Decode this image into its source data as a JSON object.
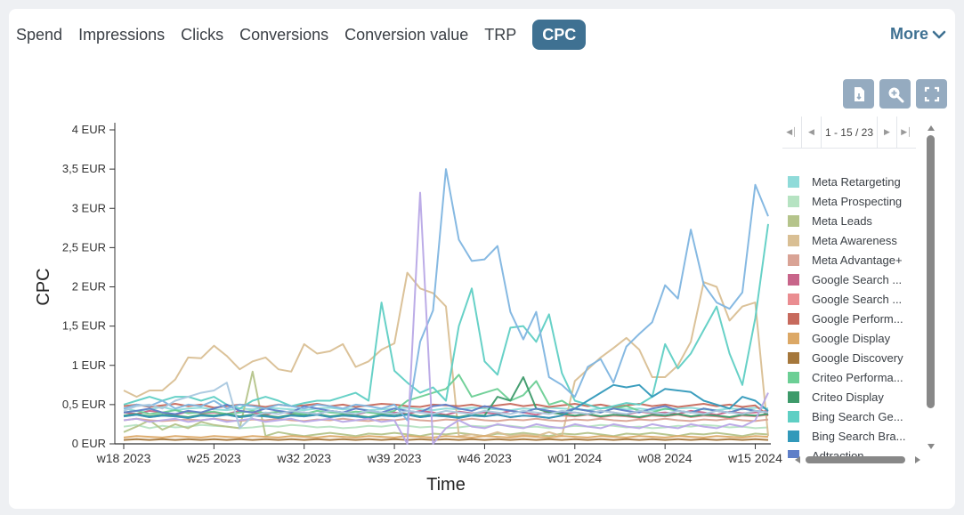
{
  "tabs": [
    {
      "label": "Spend",
      "active": false
    },
    {
      "label": "Impressions",
      "active": false
    },
    {
      "label": "Clicks",
      "active": false
    },
    {
      "label": "Conversions",
      "active": false
    },
    {
      "label": "Conversion value",
      "active": false
    },
    {
      "label": "TRP",
      "active": false
    },
    {
      "label": "CPC",
      "active": true
    }
  ],
  "more_label": "More",
  "toolbar": {
    "icons": [
      "export-icon",
      "zoom-icon",
      "fullscreen-icon"
    ]
  },
  "legend": {
    "pager": "1 - 15 / 23",
    "items": [
      {
        "label": "Meta Retargeting",
        "color": "#8fdbd9"
      },
      {
        "label": "Meta Prospecting",
        "color": "#b6e3c2"
      },
      {
        "label": "Meta Leads",
        "color": "#b5c48b"
      },
      {
        "label": "Meta Awareness",
        "color": "#d9bf94"
      },
      {
        "label": "Meta Advantage+",
        "color": "#d9a395"
      },
      {
        "label": "Google Search ...",
        "color": "#c8658a"
      },
      {
        "label": "Google Search ...",
        "color": "#ea8d91"
      },
      {
        "label": "Google Perform...",
        "color": "#c76a5d"
      },
      {
        "label": "Google Display",
        "color": "#dca866"
      },
      {
        "label": "Google Discovery",
        "color": "#a5773b"
      },
      {
        "label": "Criteo Performa...",
        "color": "#6ccf95"
      },
      {
        "label": "Criteo Display",
        "color": "#3d9a6a"
      },
      {
        "label": "Bing Search Ge...",
        "color": "#5fcfc4"
      },
      {
        "label": "Bing Search Bra...",
        "color": "#3299ba"
      },
      {
        "label": "Adtraction",
        "color": "#5f7fc8"
      }
    ]
  },
  "chart_data": {
    "type": "line",
    "xlabel": "Time",
    "ylabel": "CPC",
    "ylim": [
      0,
      4
    ],
    "y_ticks": [
      "0 EUR",
      "0,5 EUR",
      "1 EUR",
      "1,5 EUR",
      "2 EUR",
      "2,5 EUR",
      "3 EUR",
      "3,5 EUR",
      "4 EUR"
    ],
    "x_tick_labels": [
      "w18 2023",
      "w25 2023",
      "w32 2023",
      "w39 2023",
      "w46 2023",
      "w01 2024",
      "w08 2024",
      "w15 2024"
    ],
    "x": [
      "w18 2023",
      "w19 2023",
      "w20 2023",
      "w21 2023",
      "w22 2023",
      "w23 2023",
      "w24 2023",
      "w25 2023",
      "w26 2023",
      "w27 2023",
      "w28 2023",
      "w29 2023",
      "w30 2023",
      "w31 2023",
      "w32 2023",
      "w33 2023",
      "w34 2023",
      "w35 2023",
      "w36 2023",
      "w37 2023",
      "w38 2023",
      "w39 2023",
      "w40 2023",
      "w41 2023",
      "w42 2023",
      "w43 2023",
      "w44 2023",
      "w45 2023",
      "w46 2023",
      "w47 2023",
      "w48 2023",
      "w49 2023",
      "w50 2023",
      "w51 2023",
      "w52 2023",
      "w01 2024",
      "w02 2024",
      "w03 2024",
      "w04 2024",
      "w05 2024",
      "w06 2024",
      "w07 2024",
      "w08 2024",
      "w09 2024",
      "w10 2024",
      "w11 2024",
      "w12 2024",
      "w13 2024",
      "w14 2024",
      "w15 2024",
      "w16 2024"
    ],
    "series": [
      {
        "name": "Meta Retargeting",
        "color": "#8fdbd9",
        "values": [
          0.45,
          0.42,
          0.44,
          0.47,
          0.43,
          0.45,
          0.46,
          0.44,
          0.43,
          0.45,
          0.44,
          0.46,
          0.45,
          0.44,
          0.43,
          0.45,
          0.46,
          0.44,
          0.45,
          0.43,
          0.44,
          0.45,
          0.46,
          0.44,
          0.43,
          0.45,
          0.44,
          0.46,
          0.45,
          0.44,
          0.43,
          0.45,
          0.44,
          0.46,
          0.45,
          0.44,
          0.43,
          0.45,
          0.46,
          0.44,
          0.45,
          0.43,
          0.44,
          0.45,
          0.46,
          0.44,
          0.43,
          0.45,
          0.44,
          0.46,
          0.45
        ]
      },
      {
        "name": "Meta Prospecting",
        "color": "#b6e3c2",
        "values": [
          0.22,
          0.24,
          0.2,
          0.23,
          0.21,
          0.22,
          0.24,
          0.23,
          0.22,
          0.2,
          0.21,
          0.23,
          0.22,
          0.24,
          0.23,
          0.21,
          0.22,
          0.2,
          0.21,
          0.23,
          0.22,
          0.24,
          0.23,
          0.21,
          0.22,
          0.2,
          0.21,
          0.23,
          0.22,
          0.24,
          0.23,
          0.21,
          0.22,
          0.2,
          0.21,
          0.23,
          0.22,
          0.24,
          0.23,
          0.21,
          0.22,
          0.2,
          0.21,
          0.23,
          0.22,
          0.24,
          0.23,
          0.21,
          0.22,
          0.2,
          0.21
        ]
      },
      {
        "name": "Meta Leads",
        "color": "#b5c48b",
        "values": [
          0.15,
          0.22,
          0.3,
          0.18,
          0.25,
          0.2,
          0.28,
          0.24,
          0.22,
          0.2,
          0.92,
          0.1,
          0.15,
          0.12,
          0.1,
          0.12,
          0.14,
          0.12,
          0.1,
          0.13,
          0.12,
          0.14,
          0.12,
          0.1,
          0.13,
          0.12,
          0.14,
          0.12,
          0.1,
          0.13,
          0.12,
          0.14,
          0.12,
          0.1,
          0.13,
          0.12,
          0.14,
          0.12,
          0.1,
          0.13,
          0.12,
          0.14,
          0.12,
          0.1,
          0.13,
          0.12,
          0.14,
          0.12,
          0.1,
          0.13,
          0.12
        ]
      },
      {
        "name": "Meta Awareness",
        "color": "#d9bf94",
        "values": [
          0.68,
          0.6,
          0.68,
          0.68,
          0.82,
          1.1,
          1.09,
          1.25,
          1.12,
          0.95,
          1.05,
          1.1,
          0.95,
          0.92,
          1.27,
          1.15,
          1.18,
          1.27,
          0.98,
          1.05,
          1.2,
          1.28,
          2.18,
          1.98,
          1.92,
          1.75,
          0.1,
          0.12,
          0.1,
          0.15,
          0.1,
          0.12,
          0.1,
          0.15,
          0.1,
          0.8,
          0.95,
          1.1,
          1.22,
          1.35,
          1.2,
          0.85,
          0.85,
          1.0,
          1.3,
          2.06,
          2.0,
          1.57,
          1.75,
          1.8,
          0.1
        ]
      },
      {
        "name": "Meta Advantage+",
        "color": "#d9a395",
        "values": [
          0.3,
          0.32,
          0.3,
          0.29,
          0.3,
          0.31,
          0.3,
          0.32,
          0.3,
          0.29,
          0.31,
          0.3,
          0.32,
          0.3,
          0.29,
          0.31,
          0.3,
          0.32,
          0.3,
          0.29,
          0.31,
          0.3,
          0.32,
          0.3,
          0.29,
          0.31,
          0.3,
          0.32,
          0.3,
          0.29,
          0.31,
          0.3,
          0.32,
          0.3,
          0.29,
          0.31,
          0.3,
          0.32,
          0.3,
          0.29,
          0.31,
          0.3,
          0.32,
          0.3,
          0.29,
          0.31,
          0.3,
          0.32,
          0.3,
          0.29,
          0.31
        ]
      },
      {
        "name": "Google Search ...",
        "color": "#c8658a",
        "values": [
          0.4,
          0.38,
          0.42,
          0.4,
          0.37,
          0.41,
          0.39,
          0.4,
          0.38,
          0.42,
          0.4,
          0.37,
          0.41,
          0.39,
          0.4,
          0.38,
          0.42,
          0.4,
          0.37,
          0.41,
          0.39,
          0.4,
          0.38,
          0.42,
          0.4,
          0.37,
          0.41,
          0.39,
          0.4,
          0.38,
          0.42,
          0.4,
          0.37,
          0.41,
          0.39,
          0.4,
          0.38,
          0.42,
          0.4,
          0.37,
          0.41,
          0.39,
          0.4,
          0.38,
          0.42,
          0.4,
          0.37,
          0.41,
          0.39,
          0.4,
          0.42
        ]
      },
      {
        "name": "Google Search ...",
        "color": "#ea8d91",
        "values": [
          0.35,
          0.37,
          0.34,
          0.36,
          0.35,
          0.33,
          0.36,
          0.35,
          0.37,
          0.34,
          0.36,
          0.35,
          0.33,
          0.36,
          0.35,
          0.37,
          0.34,
          0.36,
          0.35,
          0.33,
          0.36,
          0.35,
          0.37,
          0.34,
          0.36,
          0.35,
          0.33,
          0.36,
          0.35,
          0.37,
          0.34,
          0.36,
          0.35,
          0.33,
          0.36,
          0.35,
          0.37,
          0.34,
          0.36,
          0.35,
          0.33,
          0.36,
          0.35,
          0.37,
          0.34,
          0.36,
          0.35,
          0.33,
          0.36,
          0.35,
          0.37
        ]
      },
      {
        "name": "Google Perform...",
        "color": "#c76a5d",
        "values": [
          0.48,
          0.5,
          0.47,
          0.49,
          0.51,
          0.48,
          0.5,
          0.46,
          0.48,
          0.5,
          0.49,
          0.47,
          0.5,
          0.48,
          0.49,
          0.51,
          0.48,
          0.5,
          0.47,
          0.49,
          0.51,
          0.5,
          0.48,
          0.47,
          0.5,
          0.49,
          0.48,
          0.5,
          0.47,
          0.49,
          0.51,
          0.48,
          0.5,
          0.47,
          0.49,
          0.51,
          0.48,
          0.5,
          0.47,
          0.49,
          0.51,
          0.48,
          0.5,
          0.47,
          0.49,
          0.51,
          0.48,
          0.5,
          0.47,
          0.49,
          0.36
        ]
      },
      {
        "name": "Google Display",
        "color": "#dca866",
        "values": [
          0.08,
          0.1,
          0.09,
          0.08,
          0.1,
          0.09,
          0.08,
          0.1,
          0.09,
          0.08,
          0.1,
          0.09,
          0.08,
          0.1,
          0.09,
          0.08,
          0.1,
          0.09,
          0.08,
          0.1,
          0.09,
          0.08,
          0.1,
          0.09,
          0.08,
          0.1,
          0.09,
          0.08,
          0.1,
          0.09,
          0.08,
          0.1,
          0.09,
          0.08,
          0.1,
          0.09,
          0.08,
          0.1,
          0.09,
          0.08,
          0.1,
          0.09,
          0.08,
          0.1,
          0.09,
          0.08,
          0.1,
          0.09,
          0.08,
          0.1,
          0.09
        ]
      },
      {
        "name": "Google Discovery",
        "color": "#a5773b",
        "values": [
          0.05,
          0.06,
          0.05,
          0.06,
          0.05,
          0.06,
          0.05,
          0.06,
          0.05,
          0.06,
          0.05,
          0.06,
          0.05,
          0.06,
          0.05,
          0.06,
          0.05,
          0.06,
          0.05,
          0.06,
          0.05,
          0.06,
          0.05,
          0.06,
          0.05,
          0.06,
          0.05,
          0.06,
          0.05,
          0.06,
          0.05,
          0.06,
          0.05,
          0.06,
          0.05,
          0.06,
          0.05,
          0.06,
          0.05,
          0.06,
          0.05,
          0.06,
          0.05,
          0.06,
          0.05,
          0.06,
          0.05,
          0.06,
          0.05,
          0.06,
          0.05
        ]
      },
      {
        "name": "Criteo Performa...",
        "color": "#6ccf95",
        "values": [
          0.4,
          0.42,
          0.38,
          0.4,
          0.43,
          0.39,
          0.4,
          0.41,
          0.38,
          0.4,
          0.42,
          0.39,
          0.41,
          0.4,
          0.38,
          0.42,
          0.4,
          0.39,
          0.41,
          0.4,
          0.38,
          0.42,
          0.55,
          0.6,
          0.65,
          0.7,
          0.88,
          0.6,
          0.65,
          0.7,
          0.55,
          0.62,
          0.8,
          0.5,
          0.55,
          0.45,
          0.42,
          0.4,
          0.45,
          0.48,
          0.42,
          0.4,
          0.45,
          0.42,
          0.4,
          0.45,
          0.42,
          0.4,
          0.45,
          0.42,
          0.4
        ]
      },
      {
        "name": "Criteo Display",
        "color": "#3d9a6a",
        "values": [
          0.36,
          0.38,
          0.35,
          0.37,
          0.36,
          0.34,
          0.37,
          0.36,
          0.38,
          0.35,
          0.37,
          0.36,
          0.34,
          0.37,
          0.36,
          0.38,
          0.35,
          0.37,
          0.36,
          0.34,
          0.37,
          0.36,
          0.38,
          0.35,
          0.37,
          0.36,
          0.34,
          0.37,
          0.36,
          0.6,
          0.55,
          0.85,
          0.45,
          0.4,
          0.38,
          0.36,
          0.38,
          0.35,
          0.37,
          0.36,
          0.34,
          0.37,
          0.36,
          0.38,
          0.35,
          0.37,
          0.36,
          0.34,
          0.37,
          0.36,
          0.38
        ]
      },
      {
        "name": "Bing Search Ge...",
        "color": "#5fcfc4",
        "values": [
          0.5,
          0.55,
          0.6,
          0.55,
          0.6,
          0.6,
          0.55,
          0.6,
          0.5,
          0.45,
          0.55,
          0.6,
          0.55,
          0.48,
          0.52,
          0.55,
          0.55,
          0.6,
          0.65,
          0.55,
          1.8,
          0.93,
          0.78,
          0.65,
          0.72,
          0.55,
          1.5,
          1.98,
          1.05,
          0.88,
          1.48,
          1.5,
          1.3,
          1.65,
          0.9,
          0.55,
          0.5,
          0.45,
          0.48,
          0.52,
          0.5,
          0.6,
          1.27,
          0.96,
          1.15,
          1.45,
          1.75,
          1.15,
          0.75,
          1.6,
          2.8
        ]
      },
      {
        "name": "Bing Search Bra...",
        "color": "#3299ba",
        "values": [
          0.35,
          0.37,
          0.34,
          0.36,
          0.35,
          0.33,
          0.36,
          0.35,
          0.37,
          0.34,
          0.36,
          0.35,
          0.33,
          0.36,
          0.35,
          0.37,
          0.34,
          0.36,
          0.35,
          0.33,
          0.36,
          0.35,
          0.37,
          0.34,
          0.36,
          0.35,
          0.33,
          0.36,
          0.35,
          0.37,
          0.34,
          0.36,
          0.35,
          0.33,
          0.36,
          0.45,
          0.55,
          0.65,
          0.75,
          0.72,
          0.75,
          0.6,
          0.7,
          0.68,
          0.66,
          0.55,
          0.5,
          0.45,
          0.6,
          0.55,
          0.42
        ]
      },
      {
        "name": "Adtraction",
        "color": "#5f7fc8",
        "values": [
          0.4,
          0.42,
          0.45,
          0.4,
          0.38,
          0.42,
          0.4,
          0.45,
          0.5,
          0.42,
          0.4,
          0.45,
          0.42,
          0.4,
          0.48,
          0.45,
          0.42,
          0.4,
          0.45,
          0.42,
          0.4,
          0.45,
          0.42,
          0.4,
          0.48,
          0.5,
          0.45,
          0.42,
          0.48,
          0.45,
          0.42,
          0.4,
          0.45,
          0.42,
          0.4,
          0.45,
          0.42,
          0.4,
          0.45,
          0.42,
          0.4,
          0.45,
          0.48,
          0.42,
          0.4,
          0.45,
          0.42,
          0.4,
          0.45,
          0.42,
          0.4
        ]
      },
      {
        "name": "",
        "color": "#7fb5e0",
        "values": [
          0.45,
          0.5,
          0.48,
          0.55,
          0.45,
          0.5,
          0.48,
          0.55,
          0.45,
          0.5,
          0.48,
          0.45,
          0.5,
          0.48,
          0.45,
          0.5,
          0.48,
          0.45,
          0.5,
          0.48,
          0.45,
          0.5,
          0.3,
          1.3,
          1.7,
          3.5,
          2.6,
          2.33,
          2.35,
          2.52,
          1.68,
          1.33,
          1.68,
          0.85,
          0.75,
          0.6,
          0.98,
          1.08,
          0.78,
          1.24,
          1.4,
          1.55,
          2.02,
          1.85,
          2.73,
          2.03,
          1.8,
          1.72,
          1.93,
          3.3,
          2.9
        ]
      },
      {
        "name": "",
        "color": "#b8a8e6",
        "values": [
          0.3,
          0.32,
          0.28,
          0.3,
          0.32,
          0.28,
          0.3,
          0.32,
          0.28,
          0.3,
          0.32,
          0.28,
          0.3,
          0.32,
          0.28,
          0.3,
          0.32,
          0.28,
          0.3,
          0.32,
          0.28,
          0.3,
          0.0,
          3.2,
          0.0,
          0.2,
          0.3,
          0.22,
          0.2,
          0.25,
          0.22,
          0.2,
          0.25,
          0.22,
          0.2,
          0.25,
          0.22,
          0.2,
          0.25,
          0.22,
          0.2,
          0.25,
          0.22,
          0.2,
          0.25,
          0.22,
          0.2,
          0.25,
          0.22,
          0.3,
          0.65
        ]
      },
      {
        "name": "",
        "color": "#aac8df",
        "values": [
          0.42,
          0.48,
          0.5,
          0.45,
          0.55,
          0.6,
          0.65,
          0.68,
          0.78,
          0.2,
          0.35,
          0.4,
          0.38,
          0.42,
          0.4,
          0.38,
          0.42,
          0.4,
          0.38,
          0.42,
          0.4,
          0.38,
          0.42,
          0.4,
          0.38,
          0.42,
          0.4,
          0.38,
          0.42,
          0.4,
          0.38,
          0.42,
          0.4,
          0.38,
          0.42,
          0.4,
          0.38,
          0.42,
          0.4,
          0.38,
          0.42,
          0.4,
          0.38,
          0.42,
          0.4,
          0.38,
          0.42,
          0.4,
          0.38,
          0.42,
          0.4
        ]
      }
    ]
  }
}
